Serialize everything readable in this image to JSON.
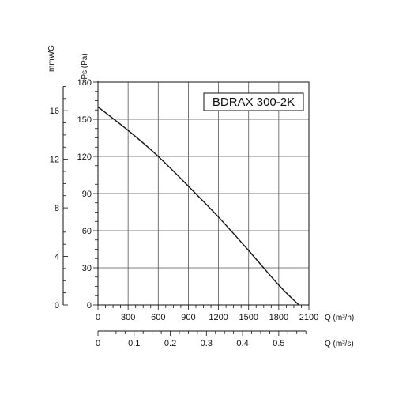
{
  "chart_data": {
    "type": "line",
    "title": "BDRAX 300-2K",
    "ylabel": "Ps (Pa)",
    "ylabel_secondary": "mmWG",
    "xlabel": "Q (m³/h)",
    "xlabel_secondary": "Q (m³/s)",
    "xlim": [
      0,
      2100
    ],
    "ylim": [
      0,
      180
    ],
    "x_ticks": [
      0,
      300,
      600,
      900,
      1200,
      1500,
      1800,
      2100
    ],
    "y_ticks": [
      0,
      30,
      60,
      90,
      120,
      150,
      180
    ],
    "y2_ticks": [
      0,
      4,
      8,
      12,
      16
    ],
    "x2_ticks": [
      0,
      0.1,
      0.2,
      0.3,
      0.4,
      0.5
    ],
    "grid": true,
    "series": [
      {
        "x": [
          0,
          300,
          600,
          900,
          1200,
          1500,
          1800,
          2000
        ],
        "y": [
          160,
          141,
          120,
          96,
          71,
          44,
          16,
          0
        ]
      }
    ]
  }
}
